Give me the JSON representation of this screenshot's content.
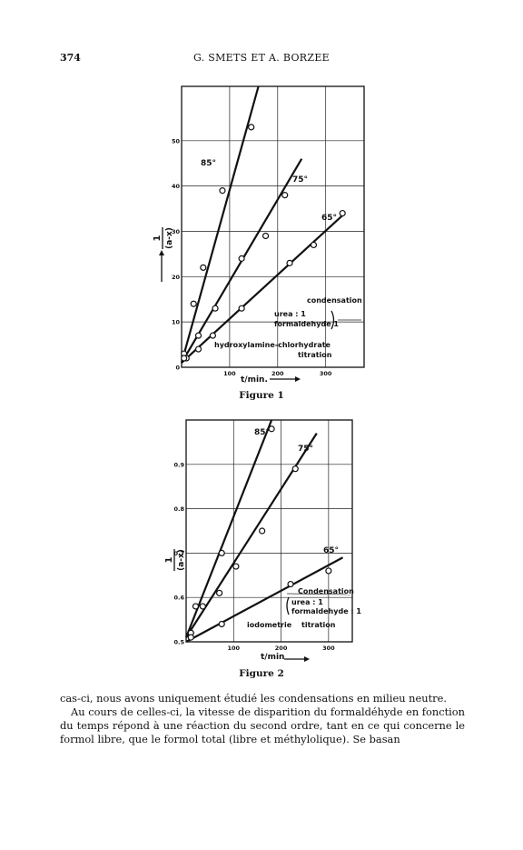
{
  "header": {
    "page_number": "374",
    "running_head": "G. SMETS ET A. BORZEE"
  },
  "figure1": {
    "caption": "Figure 1",
    "ylabel": "(a-x)",
    "ylabel_num": "1",
    "xlabel": "t/min.",
    "temp_labels": [
      "85°",
      "75°",
      "65°"
    ],
    "legend": {
      "line1": "condensation",
      "line2": "urea : 1",
      "line3": "formaldehyde 1",
      "line4": "hydroxylamine-chlorhydrate",
      "line5": "titration"
    }
  },
  "figure2": {
    "caption": "Figure 2",
    "ylabel": "(a-x)",
    "ylabel_num": "1",
    "xlabel": "t/min",
    "temp_labels": [
      "85°",
      "75°",
      "65°"
    ],
    "legend": {
      "line1": "Condensation",
      "line2": "urea : 1",
      "line3": "formaldehyde : 1",
      "line4": "iodometrie",
      "line5": "titration"
    }
  },
  "chart_data": [
    {
      "type": "scatter",
      "title": "Figure 1",
      "xlabel": "t/min.",
      "ylabel": "1/(a-x)",
      "xlim": [
        0,
        380
      ],
      "ylim": [
        0,
        62
      ],
      "x_ticks": [
        100,
        200,
        300
      ],
      "y_ticks": [
        0,
        10,
        20,
        30,
        40,
        50
      ],
      "x_tick_labels": [
        "100",
        "200",
        "300"
      ],
      "y_tick_labels": [
        "0",
        "10",
        "20",
        "30",
        "40",
        "50"
      ],
      "grid": true,
      "series": [
        {
          "name": "85°",
          "x": [
            5,
            25,
            45,
            85,
            145
          ],
          "y": [
            3,
            14,
            22,
            39,
            53
          ],
          "line": [
            [
              0,
              1
            ],
            [
              160,
              62
            ]
          ]
        },
        {
          "name": "75°",
          "x": [
            10,
            35,
            70,
            125,
            175,
            215
          ],
          "y": [
            2,
            7,
            13,
            24,
            29,
            38
          ],
          "line": [
            [
              0,
              1
            ],
            [
              250,
              46
            ]
          ]
        },
        {
          "name": "65°",
          "x": [
            5,
            35,
            65,
            125,
            225,
            275,
            335
          ],
          "y": [
            2,
            4,
            7,
            13,
            23,
            27,
            34
          ],
          "line": [
            [
              0,
              1
            ],
            [
              340,
              34
            ]
          ]
        }
      ]
    },
    {
      "type": "scatter",
      "title": "Figure 2",
      "xlabel": "t/min",
      "ylabel": "1/(a-x)",
      "xlim": [
        0,
        350
      ],
      "ylim": [
        0.5,
        1.0
      ],
      "x_ticks": [
        100,
        200,
        300
      ],
      "y_ticks": [
        0.5,
        0.6,
        0.7,
        0.8,
        0.9
      ],
      "x_tick_labels": [
        "100",
        "200",
        "300"
      ],
      "y_tick_labels": [
        "0.5",
        "0.6",
        "0.7",
        "0.8",
        "0.9"
      ],
      "grid": true,
      "series": [
        {
          "name": "85°",
          "x": [
            10,
            20,
            35,
            75,
            180
          ],
          "y": [
            0.52,
            0.58,
            0.58,
            0.7,
            0.98
          ],
          "line": [
            [
              0,
              0.51
            ],
            [
              180,
              1.0
            ]
          ]
        },
        {
          "name": "75°",
          "x": [
            10,
            70,
            105,
            160,
            230
          ],
          "y": [
            0.52,
            0.61,
            0.67,
            0.75,
            0.89
          ],
          "line": [
            [
              0,
              0.51
            ],
            [
              275,
              0.97
            ]
          ]
        },
        {
          "name": "65°",
          "x": [
            10,
            75,
            220,
            300
          ],
          "y": [
            0.51,
            0.54,
            0.63,
            0.66
          ],
          "line": [
            [
              0,
              0.5
            ],
            [
              330,
              0.69
            ]
          ]
        }
      ]
    }
  ],
  "body": {
    "paragraph1": "cas-ci, nous avons uniquement étudié les condensations en milieu neutre.",
    "paragraph2": "Au cours de celles-ci, la vitesse de disparition du formaldéhyde en fonction du temps répond à une réaction du second ordre, tant en ce qui concerne le formol libre, que le formol total (libre et méthylolique). Se basan"
  }
}
